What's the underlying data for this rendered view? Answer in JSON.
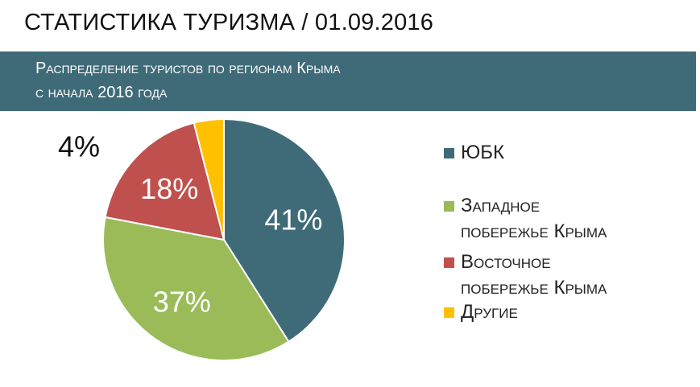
{
  "header": {
    "title": "СТАТИСТИКА ТУРИЗМА / 01.09.2016"
  },
  "banner": {
    "line1": "Распределение туристов  по регионам Крыма",
    "line2": "с начала 2016 года"
  },
  "chart_data": {
    "type": "pie",
    "categories": [
      "ЮБК",
      "Западное побережье Крыма",
      "Восточное побережье Крыма",
      "Другие"
    ],
    "values": [
      41,
      37,
      18,
      4
    ],
    "data_labels": [
      "41%",
      "37%",
      "18%",
      "4%"
    ],
    "colors": [
      "#3f6b79",
      "#9bbb59",
      "#c0504d",
      "#ffc000"
    ],
    "legend_position": "right",
    "legend": [
      {
        "lines": [
          "ЮБК"
        ],
        "color": "#3f6b79"
      },
      {
        "lines": [
          "Западное",
          "побережье Крыма"
        ],
        "color": "#9bbb59"
      },
      {
        "lines": [
          "Восточное",
          "побережье Крыма"
        ],
        "color": "#c0504d"
      },
      {
        "lines": [
          "Другие"
        ],
        "color": "#ffc000"
      }
    ]
  }
}
